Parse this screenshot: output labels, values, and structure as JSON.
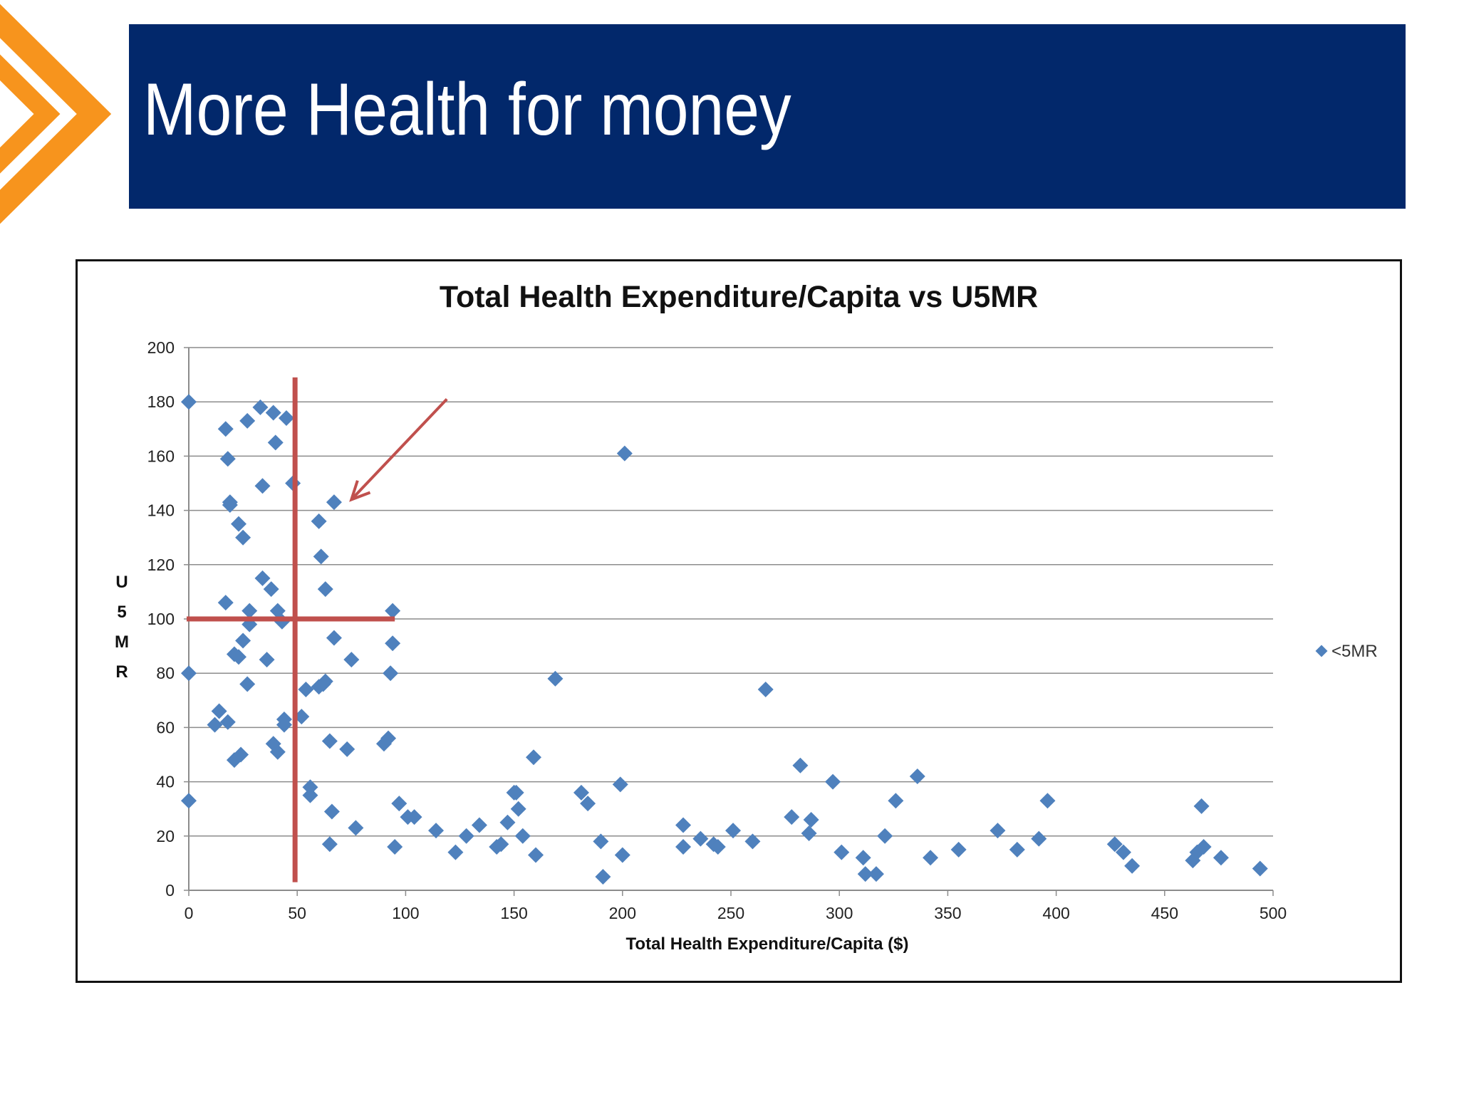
{
  "slide": {
    "title": "More Health for money",
    "colors": {
      "title_bar": "#02286b",
      "chevron": "#f7941d"
    }
  },
  "chart_data": {
    "type": "scatter",
    "title": "Total Health Expenditure/Capita vs U5MR",
    "xlabel": "Total Health Expenditure/Capita ($)",
    "ylabel": "U5MR",
    "ylabel_letters": [
      "U",
      "5",
      "M",
      "R"
    ],
    "xlim": [
      0,
      500
    ],
    "ylim": [
      0,
      200
    ],
    "x_ticks": [
      0,
      50,
      100,
      150,
      200,
      250,
      300,
      350,
      400,
      450,
      500
    ],
    "y_ticks": [
      0,
      20,
      40,
      60,
      80,
      100,
      120,
      140,
      160,
      180,
      200
    ],
    "grid": "horizontal",
    "legend": "right",
    "series": [
      {
        "name": "<5MR",
        "color": "#4f81bd",
        "marker": "diamond",
        "points": [
          [
            0,
            180
          ],
          [
            0,
            80
          ],
          [
            0,
            33
          ],
          [
            12,
            61
          ],
          [
            14,
            66
          ],
          [
            17,
            106
          ],
          [
            17,
            170
          ],
          [
            18,
            159
          ],
          [
            18,
            62
          ],
          [
            19,
            143
          ],
          [
            19,
            142
          ],
          [
            21,
            87
          ],
          [
            21,
            48
          ],
          [
            23,
            135
          ],
          [
            23,
            86
          ],
          [
            24,
            50
          ],
          [
            25,
            130
          ],
          [
            25,
            92
          ],
          [
            27,
            173
          ],
          [
            27,
            76
          ],
          [
            28,
            103
          ],
          [
            28,
            98
          ],
          [
            33,
            178
          ],
          [
            34,
            149
          ],
          [
            34,
            115
          ],
          [
            36,
            85
          ],
          [
            38,
            111
          ],
          [
            39,
            176
          ],
          [
            39,
            54
          ],
          [
            40,
            165
          ],
          [
            41,
            103
          ],
          [
            41,
            51
          ],
          [
            43,
            99
          ],
          [
            44,
            63
          ],
          [
            44,
            61
          ],
          [
            45,
            174
          ],
          [
            48,
            150
          ],
          [
            52,
            64
          ],
          [
            54,
            74
          ],
          [
            56,
            38
          ],
          [
            56,
            35
          ],
          [
            60,
            136
          ],
          [
            60,
            75
          ],
          [
            61,
            123
          ],
          [
            62,
            76
          ],
          [
            63,
            111
          ],
          [
            63,
            77
          ],
          [
            65,
            55
          ],
          [
            65,
            17
          ],
          [
            66,
            29
          ],
          [
            67,
            143
          ],
          [
            67,
            93
          ],
          [
            73,
            52
          ],
          [
            75,
            85
          ],
          [
            77,
            23
          ],
          [
            90,
            54
          ],
          [
            92,
            56
          ],
          [
            93,
            80
          ],
          [
            94,
            91
          ],
          [
            94,
            103
          ],
          [
            95,
            16
          ],
          [
            97,
            32
          ],
          [
            101,
            27
          ],
          [
            104,
            27
          ],
          [
            114,
            22
          ],
          [
            123,
            14
          ],
          [
            128,
            20
          ],
          [
            134,
            24
          ],
          [
            142,
            16
          ],
          [
            144,
            17
          ],
          [
            147,
            25
          ],
          [
            150,
            36
          ],
          [
            151,
            36
          ],
          [
            152,
            30
          ],
          [
            154,
            20
          ],
          [
            159,
            49
          ],
          [
            160,
            13
          ],
          [
            169,
            78
          ],
          [
            181,
            36
          ],
          [
            184,
            32
          ],
          [
            190,
            18
          ],
          [
            191,
            5
          ],
          [
            199,
            39
          ],
          [
            200,
            13
          ],
          [
            201,
            161
          ],
          [
            228,
            24
          ],
          [
            228,
            16
          ],
          [
            236,
            19
          ],
          [
            242,
            17
          ],
          [
            244,
            16
          ],
          [
            251,
            22
          ],
          [
            260,
            18
          ],
          [
            266,
            74
          ],
          [
            278,
            27
          ],
          [
            282,
            46
          ],
          [
            286,
            21
          ],
          [
            287,
            26
          ],
          [
            297,
            40
          ],
          [
            301,
            14
          ],
          [
            311,
            12
          ],
          [
            312,
            6
          ],
          [
            317,
            6
          ],
          [
            321,
            20
          ],
          [
            326,
            33
          ],
          [
            336,
            42
          ],
          [
            342,
            12
          ],
          [
            355,
            15
          ],
          [
            373,
            22
          ],
          [
            382,
            15
          ],
          [
            392,
            19
          ],
          [
            396,
            33
          ],
          [
            427,
            17
          ],
          [
            431,
            14
          ],
          [
            435,
            9
          ],
          [
            463,
            11
          ],
          [
            465,
            14
          ],
          [
            467,
            31
          ],
          [
            468,
            16
          ],
          [
            476,
            12
          ],
          [
            494,
            8
          ]
        ]
      }
    ],
    "annotations": [
      {
        "type": "vertical-line",
        "x": 49,
        "y_from": 3,
        "y_to": 189,
        "color": "#c0504d"
      },
      {
        "type": "horizontal-line",
        "y": 100,
        "x_from": -1,
        "x_to": 95,
        "color": "#c0504d"
      },
      {
        "type": "arrow",
        "from": [
          119,
          181
        ],
        "to": [
          75,
          144
        ],
        "color": "#c0504d"
      }
    ]
  }
}
